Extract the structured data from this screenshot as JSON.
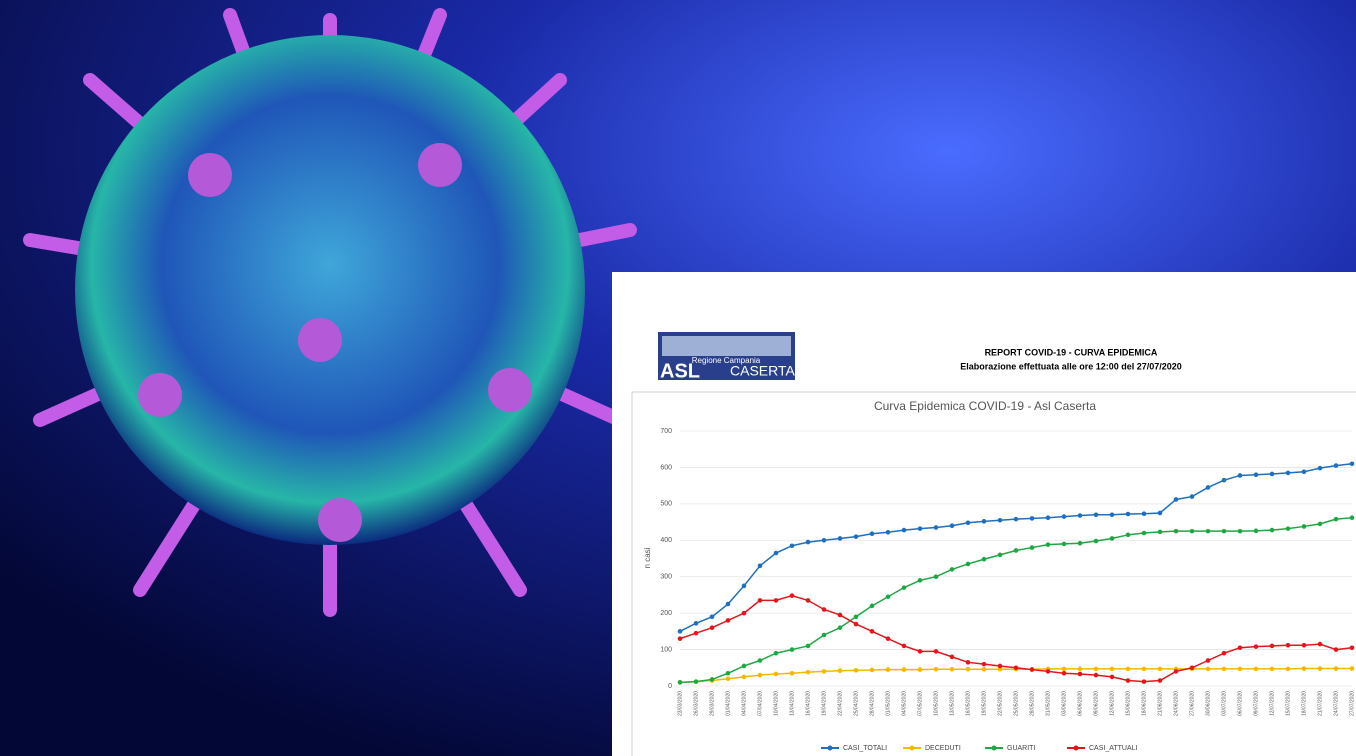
{
  "header": {
    "logo_top": "Regione Campania",
    "logo_asl": "ASL",
    "logo_name": "CASERTA",
    "title": "REPORT COVID-19 - CURVA EPIDEMICA",
    "subtitle": "Elaborazione effettuata alle ore 12:00 del 27/07/2020"
  },
  "chart_data": {
    "type": "line",
    "title": "Curva Epidemica COVID-19 - Asl Caserta",
    "y_label": "n casi",
    "x": [
      "23/03/2020",
      "26/03/2020",
      "29/03/2020",
      "01/04/2020",
      "04/04/2020",
      "07/04/2020",
      "10/04/2020",
      "13/04/2020",
      "16/04/2020",
      "19/04/2020",
      "22/04/2020",
      "25/04/2020",
      "28/04/2020",
      "01/05/2020",
      "04/05/2020",
      "07/05/2020",
      "10/05/2020",
      "13/05/2020",
      "16/05/2020",
      "19/05/2020",
      "22/05/2020",
      "25/05/2020",
      "28/05/2020",
      "31/05/2020",
      "03/06/2020",
      "06/06/2020",
      "09/06/2020",
      "12/06/2020",
      "15/06/2020",
      "18/06/2020",
      "21/06/2020",
      "24/06/2020",
      "27/06/2020",
      "30/06/2020",
      "03/07/2020",
      "06/07/2020",
      "09/07/2020",
      "12/07/2020",
      "15/07/2020",
      "18/07/2020",
      "21/07/2020",
      "24/07/2020",
      "27/07/2020"
    ],
    "series": [
      {
        "name": "CASI_TOTALI",
        "color": "#1f6fc0",
        "values": [
          150,
          172,
          190,
          225,
          275,
          330,
          365,
          385,
          395,
          400,
          405,
          410,
          418,
          422,
          428,
          432,
          435,
          440,
          448,
          452,
          455,
          458,
          460,
          462,
          465,
          468,
          470,
          470,
          472,
          473,
          475,
          512,
          520,
          545,
          565,
          578,
          580,
          582,
          585,
          588,
          598,
          605,
          610
        ]
      },
      {
        "name": "DECEDUTI",
        "color": "#f5b800",
        "values": [
          10,
          12,
          15,
          20,
          25,
          30,
          33,
          35,
          38,
          40,
          42,
          43,
          44,
          45,
          45,
          45,
          46,
          46,
          46,
          46,
          46,
          46,
          46,
          47,
          47,
          47,
          47,
          47,
          47,
          47,
          47,
          47,
          47,
          47,
          47,
          47,
          47,
          47,
          47,
          48,
          48,
          48,
          48
        ]
      },
      {
        "name": "GUARITI",
        "color": "#1ea844",
        "values": [
          10,
          12,
          18,
          35,
          55,
          70,
          90,
          100,
          110,
          140,
          160,
          190,
          220,
          245,
          270,
          290,
          300,
          320,
          335,
          348,
          360,
          372,
          380,
          388,
          390,
          392,
          398,
          405,
          415,
          420,
          423,
          425,
          425,
          425,
          425,
          425,
          426,
          428,
          432,
          438,
          445,
          458,
          462
        ]
      },
      {
        "name": "CASI_ATTUALI",
        "color": "#e3161b",
        "values": [
          130,
          145,
          160,
          180,
          200,
          235,
          235,
          248,
          235,
          210,
          195,
          170,
          150,
          130,
          110,
          95,
          95,
          80,
          65,
          60,
          55,
          50,
          45,
          40,
          35,
          33,
          30,
          25,
          15,
          12,
          15,
          40,
          50,
          70,
          90,
          105,
          108,
          110,
          112,
          112,
          115,
          100,
          105
        ]
      }
    ],
    "ylim": [
      0,
      700
    ],
    "yticks": [
      0,
      100,
      200,
      300,
      400,
      500,
      600,
      700
    ],
    "grid": true,
    "legend": "bottom"
  }
}
